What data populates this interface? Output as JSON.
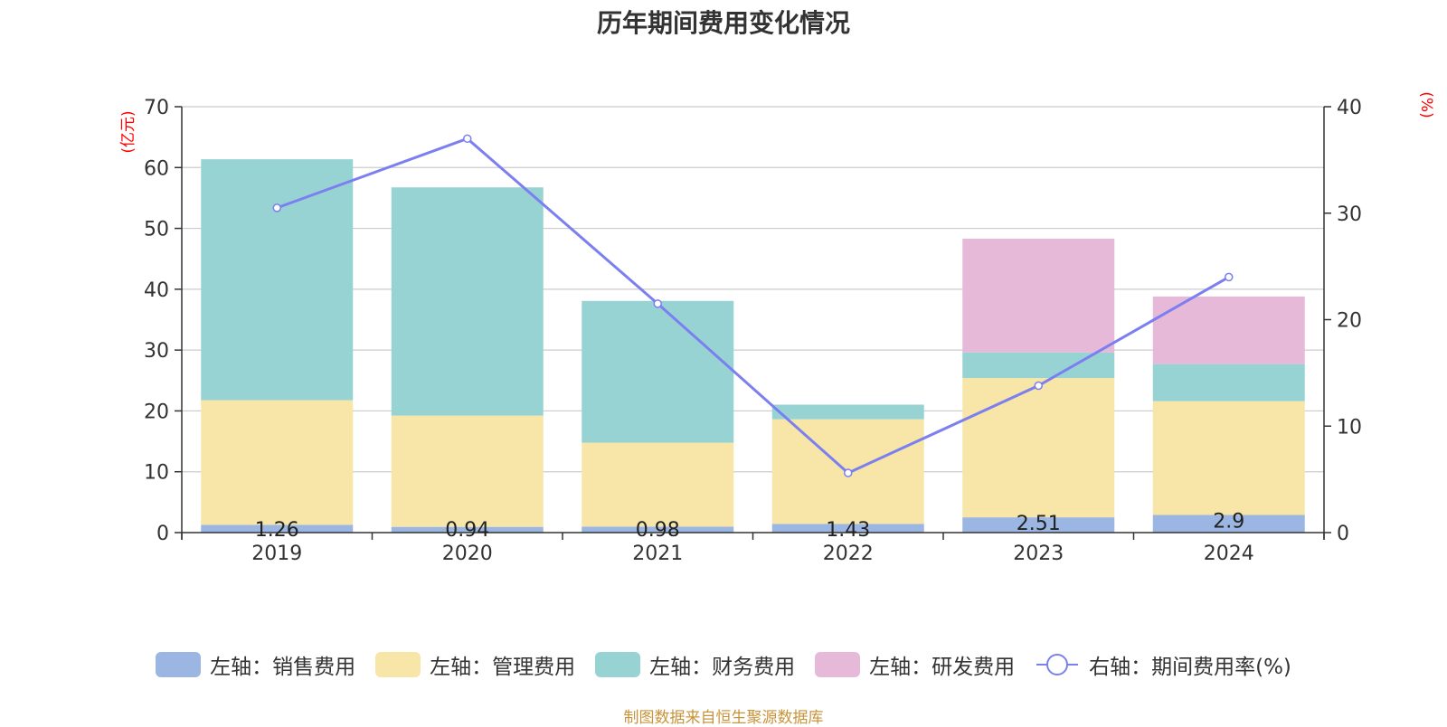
{
  "chart_data": {
    "type": "bar",
    "title": "历年期间费用变化情况",
    "categories": [
      "2019",
      "2020",
      "2021",
      "2022",
      "2023",
      "2024"
    ],
    "left_axis": {
      "unit": "(亿元)",
      "ylim": [
        0,
        70
      ],
      "ticks": [
        "0",
        "10",
        "20",
        "30",
        "40",
        "50",
        "60",
        "70"
      ]
    },
    "right_axis": {
      "unit": "(%)",
      "ylim": [
        0,
        40
      ],
      "ticks": [
        "0",
        "10",
        "20",
        "30",
        "40"
      ]
    },
    "series": [
      {
        "name": "左轴：销售费用",
        "axis": "left",
        "type": "bar",
        "stack": "total",
        "color": "#9bb6e2",
        "values": [
          1.26,
          0.94,
          0.98,
          1.43,
          2.51,
          2.9
        ],
        "labels": [
          "1.26",
          "0.94",
          "0.98",
          "1.43",
          "2.51",
          "2.9"
        ]
      },
      {
        "name": "左轴：管理费用",
        "axis": "left",
        "type": "bar",
        "stack": "total",
        "color": "#f7e6a7",
        "values": [
          20.5,
          18.3,
          13.8,
          17.2,
          22.9,
          18.7
        ]
      },
      {
        "name": "左轴：财务费用",
        "axis": "left",
        "type": "bar",
        "stack": "total",
        "color": "#98d3d4",
        "values": [
          39.6,
          37.5,
          23.3,
          2.4,
          4.2,
          6.1
        ]
      },
      {
        "name": "左轴：研发费用",
        "axis": "left",
        "type": "bar",
        "stack": "total",
        "color": "#e6b9d9",
        "values": [
          0,
          0,
          0,
          0,
          18.7,
          11.1
        ]
      },
      {
        "name": "右轴：期间费用率(%)",
        "axis": "right",
        "type": "line",
        "color": "#7b7ff0",
        "values": [
          30.5,
          37.0,
          21.5,
          5.6,
          13.8,
          24.0
        ]
      }
    ],
    "grid": true,
    "legend_position": "bottom"
  },
  "source": "制图数据来自恒生聚源数据库"
}
